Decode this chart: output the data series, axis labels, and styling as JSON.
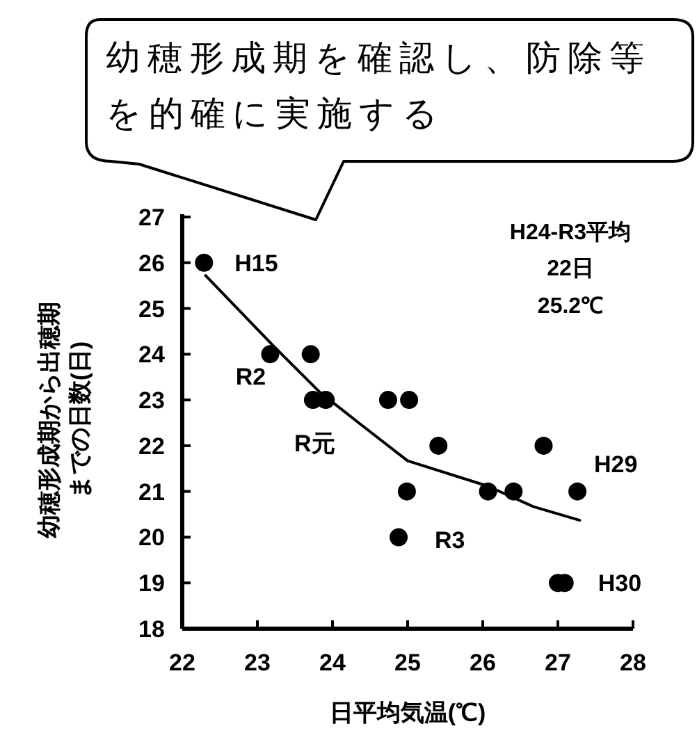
{
  "chart_data": {
    "type": "scatter",
    "xlabel": "日平均気温(℃)",
    "ylabel": "幼穂形成期から出穂期までの日数(日)",
    "xlim": [
      22,
      28
    ],
    "ylim": [
      18,
      27
    ],
    "xticks": [
      22,
      23,
      24,
      25,
      26,
      27,
      28
    ],
    "yticks": [
      18,
      19,
      20,
      21,
      22,
      23,
      24,
      25,
      26,
      27
    ],
    "grid": false,
    "marker": "circle",
    "series": [
      {
        "type": "scatter",
        "color": "#000000",
        "x": [
          22.29,
          23.17,
          23.71,
          23.74,
          23.91,
          24.74,
          25.02,
          25.41,
          26.81,
          24.99,
          26.07,
          26.41,
          27.26,
          24.88,
          27.09,
          27.0
        ],
        "values": [
          26,
          24,
          24,
          23,
          23,
          23,
          23,
          22,
          22,
          21,
          21,
          21,
          21,
          20,
          19,
          19
        ]
      },
      {
        "type": "line",
        "color": "#000000",
        "marker": "none",
        "line_style": "solid",
        "x": [
          22.31,
          23.22,
          23.83,
          24.45,
          25.0,
          26.06,
          26.67,
          27.29
        ],
        "values": [
          25.72,
          24.17,
          23.17,
          22.37,
          21.67,
          21.12,
          20.67,
          20.37
        ]
      }
    ],
    "annotations": [
      "幼穂形成期を確認し、防除等を的確に実施する",
      "H24-R3平均",
      "22日",
      "25.2℃",
      {
        "text": "H15",
        "x": 22.29,
        "y": 26
      },
      {
        "text": "R2",
        "x": 23.17,
        "y": 24
      },
      {
        "text": "R元",
        "x": 23.91,
        "y": 23
      },
      {
        "text": "R3",
        "x": 24.88,
        "y": 20
      },
      {
        "text": "H29",
        "x": 27.26,
        "y": 21
      },
      {
        "text": "H30",
        "x": 27.09,
        "y": 19
      }
    ]
  }
}
